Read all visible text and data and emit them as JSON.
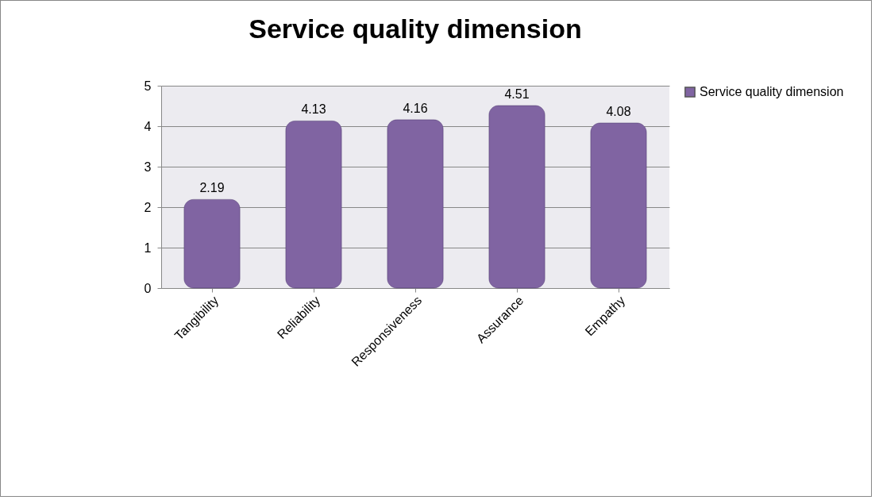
{
  "chart_data": {
    "type": "bar",
    "title": "Service quality dimension",
    "categories": [
      "Tangibility",
      "Reliability",
      "Responsiveness",
      "Assurance",
      "Empathy"
    ],
    "series": [
      {
        "name": "Service quality dimension",
        "color": "#8064a2",
        "values": [
          2.19,
          4.13,
          4.16,
          4.51,
          4.08
        ]
      }
    ],
    "ylim": [
      0,
      5
    ],
    "yticks": [
      0,
      1,
      2,
      3,
      4,
      5
    ],
    "grid": "y",
    "legend": "right",
    "data_labels": true
  }
}
